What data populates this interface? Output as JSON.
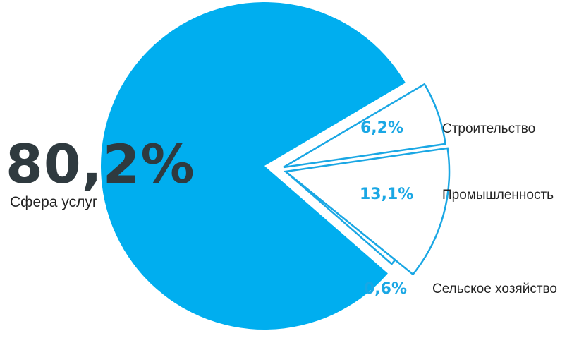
{
  "chart_data": {
    "type": "pie",
    "title": "",
    "slices": [
      {
        "label": "Сфера услуг",
        "value": 80.2,
        "display": "80,2%"
      },
      {
        "label": "Строительство",
        "value": 6.2,
        "display": "6,2%"
      },
      {
        "label": "Промышленность",
        "value": 13.1,
        "display": "13,1%"
      },
      {
        "label": "Сельское хозяйство",
        "value": 0.6,
        "display": "0,6%"
      }
    ]
  },
  "colors": {
    "main": "#00aeef",
    "outline": "#1aa7e4",
    "value_dark": "#2f3a3f"
  }
}
